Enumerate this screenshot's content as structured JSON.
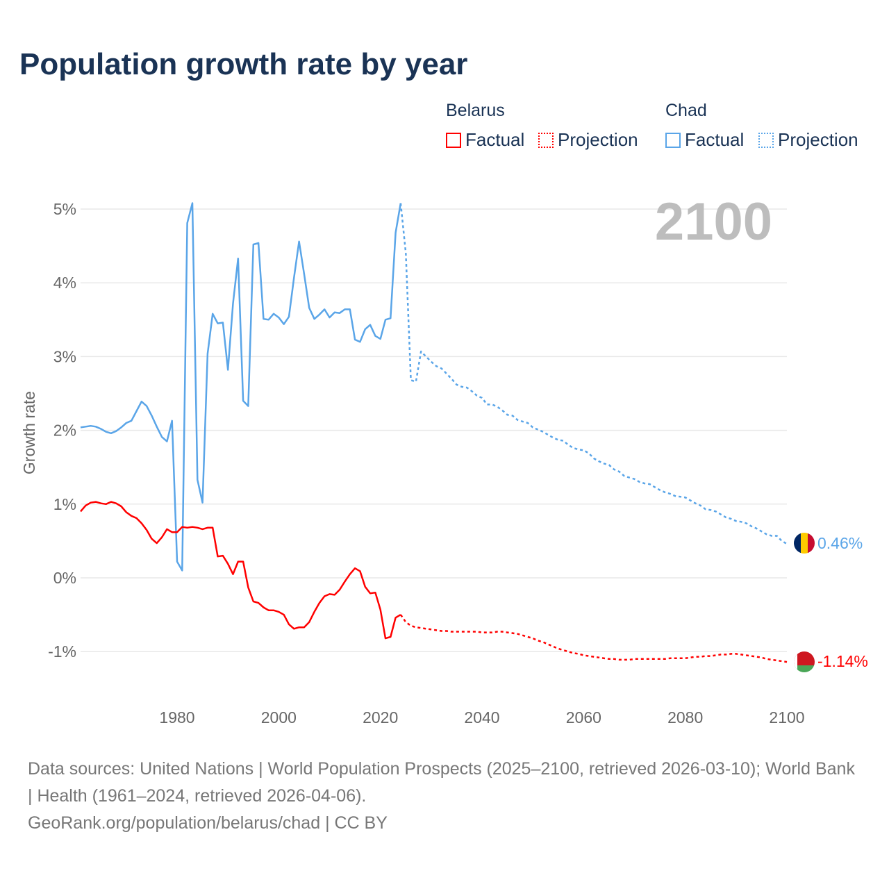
{
  "title": "Population growth rate by year",
  "year_label": "2100",
  "legend": {
    "belarus": "Belarus",
    "chad": "Chad",
    "factual": "Factual",
    "projection": "Projection"
  },
  "end_labels": {
    "chad": "0.46%",
    "belarus": "-1.14%"
  },
  "footer": {
    "sources": "Data sources: United Nations | World Population Prospects (2025–2100, retrieved 2026-03-10); World Bank | Health (1961–2024, retrieved 2026-04-06).",
    "credit": "GeoRank.org/population/belarus/chad | CC BY"
  },
  "colors": {
    "belarus": "#ff0000",
    "chad": "#5aa5e8"
  },
  "chart_data": {
    "type": "line",
    "ylabel": "Growth rate",
    "xlim": [
      1961,
      2100
    ],
    "ylim": [
      -1.4,
      5.2
    ],
    "yticks": [
      {
        "v": 5,
        "label": "5%"
      },
      {
        "v": 4,
        "label": "4%"
      },
      {
        "v": 3,
        "label": "3%"
      },
      {
        "v": 2,
        "label": "2%"
      },
      {
        "v": 1,
        "label": "1%"
      },
      {
        "v": 0,
        "label": "0%"
      },
      {
        "v": -1,
        "label": "-1%"
      }
    ],
    "xticks": [
      {
        "v": 1980,
        "label": "1980"
      },
      {
        "v": 2000,
        "label": "2000"
      },
      {
        "v": 2020,
        "label": "2020"
      },
      {
        "v": 2040,
        "label": "2040"
      },
      {
        "v": 2060,
        "label": "2060"
      },
      {
        "v": 2080,
        "label": "2080"
      },
      {
        "v": 2100,
        "label": "2100"
      }
    ],
    "series": [
      {
        "name": "Chad Factual",
        "color": "#5aa5e8",
        "dashed": false,
        "x_start": 1961,
        "values": [
          2.04,
          2.05,
          2.06,
          2.05,
          2.02,
          1.98,
          1.96,
          1.99,
          2.04,
          2.1,
          2.13,
          2.26,
          2.39,
          2.33,
          2.2,
          2.05,
          1.91,
          1.85,
          2.13,
          0.22,
          0.1,
          4.81,
          5.08,
          1.33,
          1.02,
          3.04,
          3.58,
          3.45,
          3.46,
          2.82,
          3.72,
          4.33,
          2.4,
          2.33,
          4.52,
          4.54,
          3.51,
          3.5,
          3.58,
          3.53,
          3.44,
          3.54,
          4.07,
          4.56,
          4.12,
          3.66,
          3.51,
          3.57,
          3.64,
          3.53,
          3.6,
          3.59,
          3.64,
          3.64,
          3.23,
          3.2,
          3.37,
          3.43,
          3.28,
          3.24,
          3.5,
          3.52,
          4.68,
          5.08
        ]
      },
      {
        "name": "Chad Projection",
        "color": "#5aa5e8",
        "dashed": true,
        "x_start": 2024,
        "values": [
          5.08,
          4.4,
          2.68,
          2.66,
          3.07,
          3.0,
          2.93,
          2.87,
          2.84,
          2.77,
          2.7,
          2.62,
          2.59,
          2.58,
          2.53,
          2.47,
          2.44,
          2.35,
          2.35,
          2.32,
          2.27,
          2.21,
          2.2,
          2.14,
          2.12,
          2.1,
          2.04,
          2.01,
          1.98,
          1.94,
          1.9,
          1.87,
          1.86,
          1.8,
          1.76,
          1.74,
          1.73,
          1.69,
          1.62,
          1.58,
          1.55,
          1.53,
          1.47,
          1.44,
          1.38,
          1.36,
          1.34,
          1.3,
          1.28,
          1.27,
          1.23,
          1.19,
          1.16,
          1.14,
          1.11,
          1.1,
          1.09,
          1.05,
          1.01,
          0.98,
          0.93,
          0.92,
          0.9,
          0.86,
          0.82,
          0.8,
          0.77,
          0.76,
          0.74,
          0.7,
          0.67,
          0.63,
          0.59,
          0.57,
          0.57,
          0.5,
          0.46
        ]
      },
      {
        "name": "Belarus Factual",
        "color": "#ff0000",
        "dashed": false,
        "x_start": 1961,
        "values": [
          0.9,
          0.98,
          1.02,
          1.03,
          1.01,
          1.0,
          1.03,
          1.01,
          0.97,
          0.89,
          0.84,
          0.81,
          0.74,
          0.65,
          0.53,
          0.47,
          0.55,
          0.66,
          0.62,
          0.62,
          0.69,
          0.68,
          0.69,
          0.68,
          0.66,
          0.68,
          0.68,
          0.29,
          0.3,
          0.19,
          0.05,
          0.22,
          0.22,
          -0.13,
          -0.32,
          -0.34,
          -0.4,
          -0.44,
          -0.44,
          -0.46,
          -0.5,
          -0.63,
          -0.69,
          -0.67,
          -0.67,
          -0.6,
          -0.46,
          -0.34,
          -0.25,
          -0.22,
          -0.23,
          -0.16,
          -0.05,
          0.05,
          0.13,
          0.09,
          -0.12,
          -0.21,
          -0.2,
          -0.43,
          -0.82,
          -0.8,
          -0.54,
          -0.5
        ]
      },
      {
        "name": "Belarus Projection",
        "color": "#ff0000",
        "dashed": true,
        "x_start": 2024,
        "values": [
          -0.5,
          -0.6,
          -0.65,
          -0.67,
          -0.68,
          -0.69,
          -0.7,
          -0.71,
          -0.72,
          -0.72,
          -0.73,
          -0.73,
          -0.73,
          -0.73,
          -0.73,
          -0.73,
          -0.74,
          -0.74,
          -0.74,
          -0.73,
          -0.73,
          -0.74,
          -0.75,
          -0.76,
          -0.78,
          -0.8,
          -0.82,
          -0.85,
          -0.87,
          -0.9,
          -0.93,
          -0.96,
          -0.98,
          -1.0,
          -1.02,
          -1.03,
          -1.05,
          -1.06,
          -1.07,
          -1.08,
          -1.09,
          -1.1,
          -1.1,
          -1.11,
          -1.11,
          -1.11,
          -1.1,
          -1.1,
          -1.1,
          -1.1,
          -1.1,
          -1.1,
          -1.1,
          -1.09,
          -1.09,
          -1.09,
          -1.09,
          -1.08,
          -1.07,
          -1.07,
          -1.06,
          -1.06,
          -1.05,
          -1.04,
          -1.04,
          -1.03,
          -1.03,
          -1.04,
          -1.05,
          -1.06,
          -1.07,
          -1.08,
          -1.1,
          -1.11,
          -1.12,
          -1.13,
          -1.14
        ]
      }
    ]
  }
}
